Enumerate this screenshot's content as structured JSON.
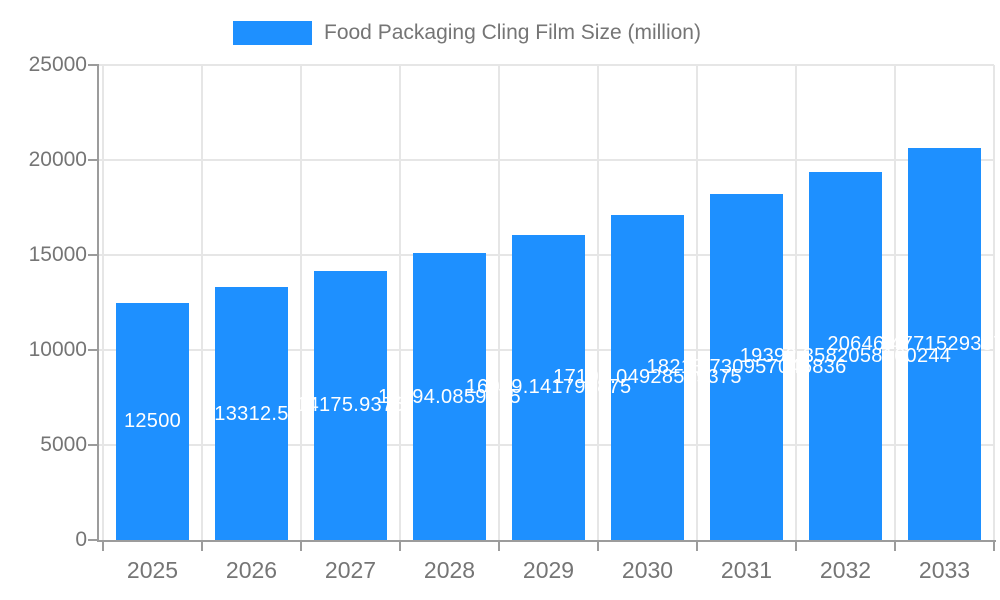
{
  "legend": {
    "series_label": "Food Packaging Cling Film Size (million)"
  },
  "chart_data": {
    "type": "bar",
    "title": "Food Packaging Cling Film Size (million)",
    "categories": [
      "2025",
      "2026",
      "2027",
      "2028",
      "2029",
      "2030",
      "2031",
      "2032",
      "2033"
    ],
    "values": [
      12500,
      13312.5,
      14175.9375,
      15094.0859375,
      16069.141796875,
      17108.04928509375,
      18213.730957046835,
      19392.358205816025,
      20646.47715293571
    ],
    "bar_labels": [
      "12500",
      "13312.5",
      "14175.9375",
      "15094.0859375",
      "16069.141796875",
      "17108.04928509375",
      "18213.730957046836",
      "19392.3582058160244",
      "20646.477152935710244"
    ],
    "xlabel": "",
    "ylabel": "",
    "ylim": [
      0,
      25000
    ],
    "y_ticks": [
      "25000",
      "20000",
      "15000",
      "10000",
      "5000",
      "0"
    ],
    "legend_position": "top",
    "grid": "both",
    "bar_color": "#1e90ff",
    "grid_color": "#e6e6e6",
    "axis_color": "#9c9c9c",
    "text_color": "#757575",
    "bar_label_color": "#ffffff",
    "background_color": "#ffffff"
  }
}
